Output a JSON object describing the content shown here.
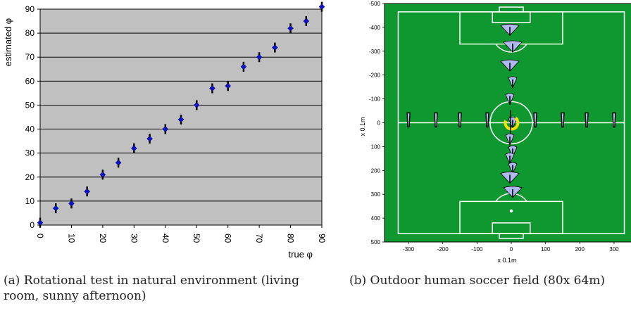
{
  "chart_data": [
    {
      "type": "scatter",
      "title": "",
      "xlabel": "true φ",
      "ylabel": "estimated φ",
      "x_ticks": [
        "0",
        "10",
        "20",
        "30",
        "40",
        "50",
        "60",
        "70",
        "80",
        "90"
      ],
      "y_ticks": [
        "0",
        "10",
        "20",
        "30",
        "40",
        "50",
        "60",
        "70",
        "80",
        "90"
      ],
      "xlim": [
        0,
        90
      ],
      "ylim": [
        0,
        90
      ],
      "grid": "horizontal",
      "plot_background": "#c0c0c0",
      "marker_color": "#1010d0",
      "x": [
        0,
        5,
        10,
        15,
        20,
        25,
        30,
        35,
        40,
        45,
        50,
        55,
        60,
        65,
        70,
        75,
        80,
        85,
        90
      ],
      "y": [
        1,
        7,
        9,
        14,
        21,
        26,
        32,
        36,
        40,
        44,
        50,
        57,
        58,
        66,
        70,
        74,
        82,
        85,
        91
      ]
    },
    {
      "type": "scatter",
      "title": "",
      "xlabel": "x 0.1m",
      "ylabel": "x 0.1m",
      "x_ticks": [
        "-300",
        "-200",
        "-100",
        "0",
        "100",
        "200",
        "300"
      ],
      "y_ticks": [
        "-500",
        "-400",
        "-300",
        "-200",
        "-100",
        "0",
        "100",
        "200",
        "300",
        "400",
        "500"
      ],
      "xlim": [
        -370,
        370
      ],
      "ylim": [
        -500,
        500
      ],
      "field_color": "#109830",
      "vertical_positions_y": [
        -390,
        -320,
        -240,
        -170,
        -100,
        0,
        70,
        120,
        150,
        190,
        230,
        290
      ],
      "horizontal_positions_x": [
        -300,
        -220,
        -150,
        -70,
        0,
        70,
        150,
        220,
        300
      ],
      "marker_color_fill": "#b0b8f0"
    }
  ],
  "captions": {
    "a": "(a) Rotational test in natural environment (living room, sunny afternoon)",
    "b": "(b) Outdoor human soccer field (80x 64m)"
  }
}
